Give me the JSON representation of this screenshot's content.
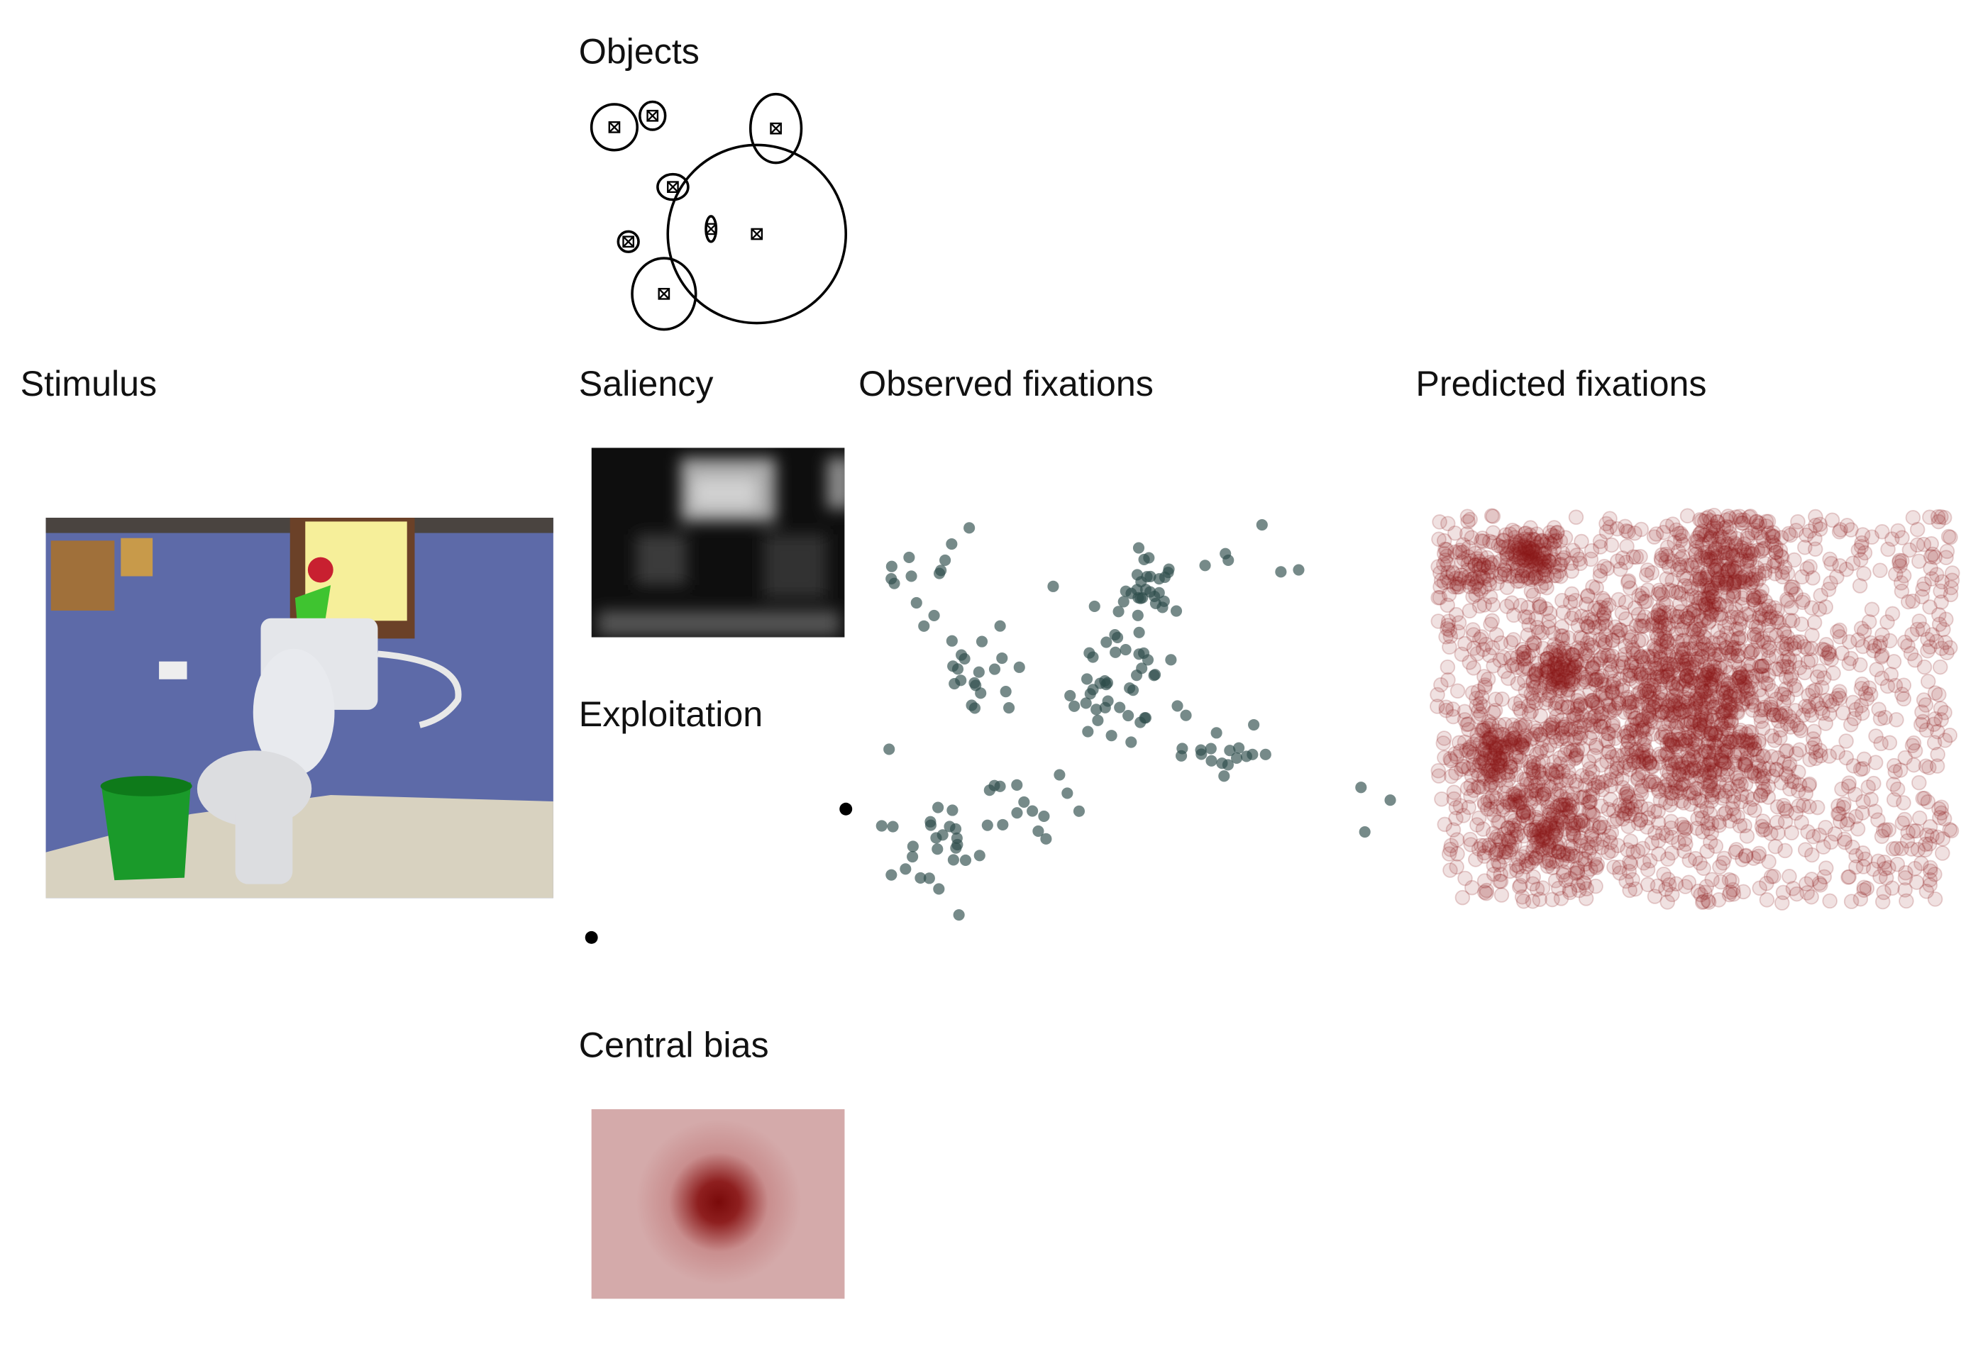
{
  "panels": {
    "objects": {
      "title": "Objects"
    },
    "stimulus": {
      "title": "Stimulus"
    },
    "saliency": {
      "title": "Saliency"
    },
    "observed": {
      "title": "Observed fixations"
    },
    "predicted": {
      "title": "Predicted fixations"
    },
    "exploitation": {
      "title": "Exploitation"
    },
    "central_bias": {
      "title": "Central bias"
    }
  }
}
